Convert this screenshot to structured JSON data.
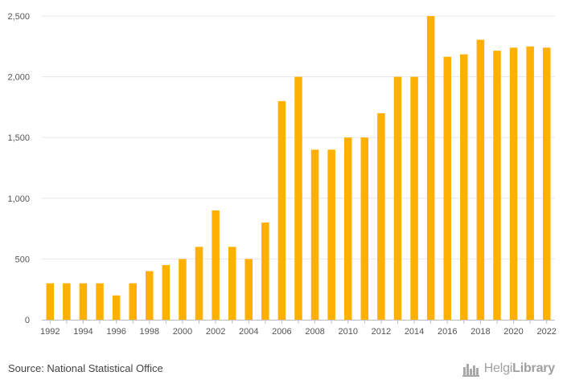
{
  "chart_data": {
    "type": "bar",
    "categories": [
      "1992",
      "1993",
      "1994",
      "1995",
      "1996",
      "1997",
      "1998",
      "1999",
      "2000",
      "2001",
      "2002",
      "2003",
      "2004",
      "2005",
      "2006",
      "2007",
      "2008",
      "2009",
      "2010",
      "2011",
      "2012",
      "2013",
      "2014",
      "2015",
      "2016",
      "2017",
      "2018",
      "2019",
      "2020",
      "2021",
      "2022"
    ],
    "x_tick_labels": [
      "1992",
      "1994",
      "1996",
      "1998",
      "2000",
      "2002",
      "2004",
      "2006",
      "2008",
      "2010",
      "2012",
      "2014",
      "2016",
      "2018",
      "2020",
      "2022"
    ],
    "values": [
      300,
      300,
      300,
      300,
      200,
      300,
      400,
      450,
      500,
      600,
      900,
      600,
      500,
      800,
      1800,
      2000,
      1400,
      1400,
      1500,
      1500,
      1700,
      2000,
      2000,
      2500,
      2165,
      2185,
      2305,
      2215,
      2240,
      2250,
      2240
    ],
    "y_ticks": [
      0,
      500,
      1000,
      1500,
      2000,
      2500
    ],
    "y_tick_labels": [
      "0",
      "500",
      "1,000",
      "1,500",
      "2,000",
      "2,500"
    ],
    "ylim": [
      0,
      2500
    ],
    "title": "",
    "xlabel": "",
    "ylabel": "",
    "grid": "horizontal",
    "legend": "none",
    "bar_color": "#FFB000",
    "grid_color": "#e6e6e6",
    "axis_color": "#bdbdbd"
  },
  "footer": {
    "source": "Source: National Statistical Office",
    "logo_text_regular": "Helgi",
    "logo_text_bold": "Library",
    "logo_icon": "helgi-library-logo-icon"
  }
}
